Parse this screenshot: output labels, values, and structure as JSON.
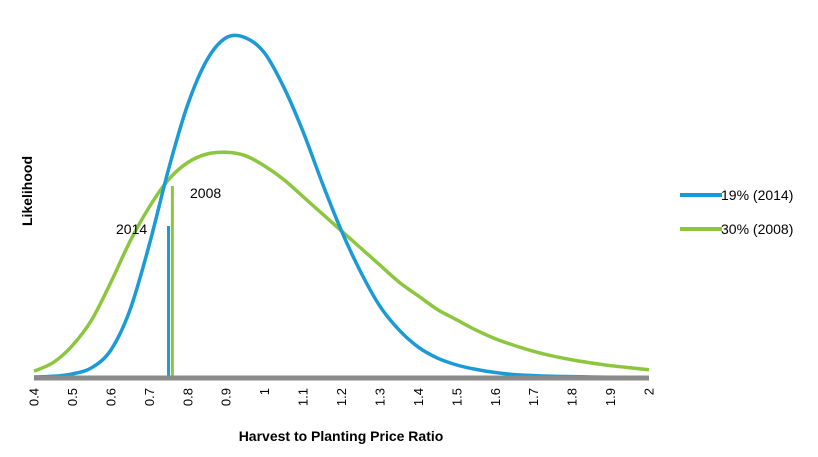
{
  "chart_data": {
    "type": "line",
    "xlabel": "Harvest to Planting Price Ratio",
    "ylabel": "Likelihood",
    "xlim": [
      0.4,
      2
    ],
    "ylim": [
      0,
      1
    ],
    "grid": false,
    "legend_position": "right",
    "x_ticks": [
      "0.4",
      "0.5",
      "0.6",
      "0.7",
      "0.8",
      "0.9",
      "1",
      "1.1",
      "1.2",
      "1.3",
      "1.4",
      "1.5",
      "1.6",
      "1.7",
      "1.8",
      "1.9",
      "2"
    ],
    "x": [
      0.4,
      0.45,
      0.5,
      0.55,
      0.6,
      0.65,
      0.7,
      0.75,
      0.8,
      0.85,
      0.9,
      0.95,
      1.0,
      1.05,
      1.1,
      1.15,
      1.2,
      1.25,
      1.3,
      1.35,
      1.4,
      1.45,
      1.5,
      1.55,
      1.6,
      1.65,
      1.7,
      1.75,
      1.8,
      1.85,
      1.9,
      1.95,
      2.0
    ],
    "series": [
      {
        "name": "19% (2014)",
        "color": "#1a9ad6",
        "values": [
          0.003,
          0.005,
          0.012,
          0.03,
          0.082,
          0.2,
          0.39,
          0.61,
          0.8,
          0.93,
          0.995,
          0.995,
          0.95,
          0.85,
          0.72,
          0.57,
          0.43,
          0.31,
          0.21,
          0.14,
          0.09,
          0.058,
          0.038,
          0.025,
          0.016,
          0.01,
          0.007,
          0.005,
          0.004,
          0.003,
          0.002,
          0.001,
          0.001
        ]
      },
      {
        "name": "30% (2008)",
        "color": "#8cc63f",
        "values": [
          0.02,
          0.045,
          0.095,
          0.17,
          0.28,
          0.4,
          0.5,
          0.58,
          0.63,
          0.655,
          0.66,
          0.65,
          0.62,
          0.58,
          0.53,
          0.48,
          0.43,
          0.38,
          0.33,
          0.28,
          0.24,
          0.2,
          0.17,
          0.14,
          0.115,
          0.095,
          0.078,
          0.064,
          0.053,
          0.044,
          0.036,
          0.03,
          0.024
        ]
      }
    ],
    "markers": [
      {
        "label": "2014",
        "x": 0.75,
        "color": "#1a9ad6"
      },
      {
        "label": "2008",
        "x": 0.76,
        "color": "#8cc63f"
      }
    ]
  }
}
